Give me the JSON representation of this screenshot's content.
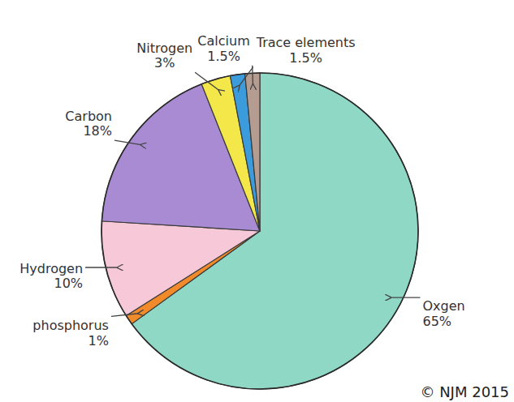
{
  "chart_data": {
    "type": "pie",
    "categories": [
      "Oxgen",
      "phosphorus",
      "Hydrogen",
      "Carbon",
      "Nitrogen",
      "Trace elements",
      "Calcium"
    ],
    "values": [
      65,
      1,
      10,
      18,
      3,
      1.5,
      1.5
    ],
    "value_labels": [
      "65%",
      "1%",
      "10%",
      "18%",
      "3%",
      "1.5%",
      "1.5%"
    ],
    "colors": [
      "#8fd8c6",
      "#f08a2a",
      "#f6c8d8",
      "#a88bd2",
      "#f3e74a",
      "#3b9bdb",
      "#b49d90"
    ],
    "data_labels": true,
    "annotations": [
      "© NJM 2015"
    ]
  }
}
